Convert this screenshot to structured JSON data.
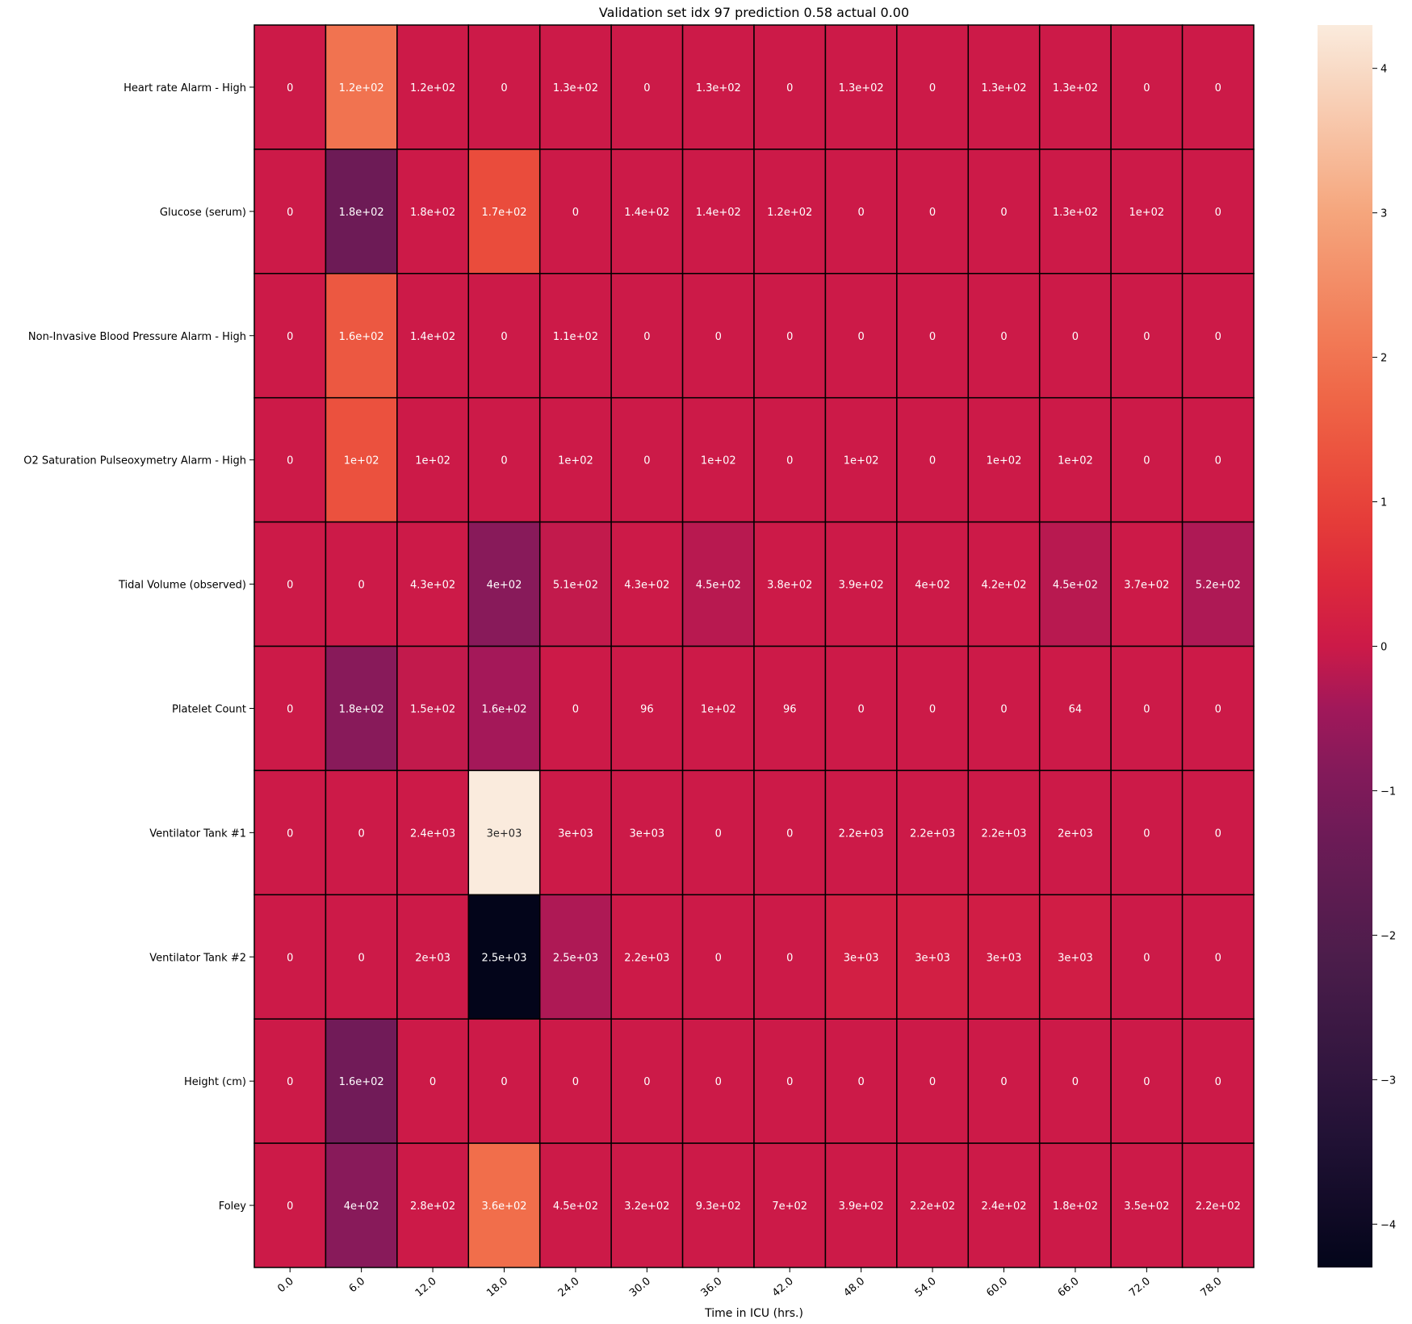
{
  "chart_data": {
    "type": "heatmap",
    "title": "Validation set idx 97 prediction 0.58 actual 0.00",
    "xlabel": "Time in ICU (hrs.)",
    "ylabel": "",
    "x": [
      "0.0",
      "6.0",
      "12.0",
      "18.0",
      "24.0",
      "30.0",
      "36.0",
      "42.0",
      "48.0",
      "54.0",
      "60.0",
      "66.0",
      "72.0",
      "78.0"
    ],
    "y": [
      "Heart rate Alarm - High",
      "Glucose (serum)",
      "Non-Invasive Blood Pressure Alarm - High",
      "O2 Saturation Pulseoxymetry Alarm - High",
      "Tidal Volume (observed)",
      "Platelet Count",
      "Ventilator Tank #1",
      "Ventilator Tank #2",
      "Height (cm)",
      "Foley"
    ],
    "annotations": [
      [
        "0",
        "1.2e+02",
        "1.2e+02",
        "0",
        "1.3e+02",
        "0",
        "1.3e+02",
        "0",
        "1.3e+02",
        "0",
        "1.3e+02",
        "1.3e+02",
        "0",
        "0"
      ],
      [
        "0",
        "1.8e+02",
        "1.8e+02",
        "1.7e+02",
        "0",
        "1.4e+02",
        "1.4e+02",
        "1.2e+02",
        "0",
        "0",
        "0",
        "1.3e+02",
        "1e+02",
        "0"
      ],
      [
        "0",
        "1.6e+02",
        "1.4e+02",
        "0",
        "1.1e+02",
        "0",
        "0",
        "0",
        "0",
        "0",
        "0",
        "0",
        "0",
        "0"
      ],
      [
        "0",
        "1e+02",
        "1e+02",
        "0",
        "1e+02",
        "0",
        "1e+02",
        "0",
        "1e+02",
        "0",
        "1e+02",
        "1e+02",
        "0",
        "0"
      ],
      [
        "0",
        "0",
        "4.3e+02",
        "4e+02",
        "5.1e+02",
        "4.3e+02",
        "4.5e+02",
        "3.8e+02",
        "3.9e+02",
        "4e+02",
        "4.2e+02",
        "4.5e+02",
        "3.7e+02",
        "5.2e+02"
      ],
      [
        "0",
        "1.8e+02",
        "1.5e+02",
        "1.6e+02",
        "0",
        "96",
        "1e+02",
        "96",
        "0",
        "0",
        "0",
        "64",
        "0",
        "0"
      ],
      [
        "0",
        "0",
        "2.4e+03",
        "3e+03",
        "3e+03",
        "3e+03",
        "0",
        "0",
        "2.2e+03",
        "2.2e+03",
        "2.2e+03",
        "2e+03",
        "0",
        "0"
      ],
      [
        "0",
        "0",
        "2e+03",
        "2.5e+03",
        "2.5e+03",
        "2.2e+03",
        "0",
        "0",
        "3e+03",
        "3e+03",
        "3e+03",
        "3e+03",
        "0",
        "0"
      ],
      [
        "0",
        "1.6e+02",
        "0",
        "0",
        "0",
        "0",
        "0",
        "0",
        "0",
        "0",
        "0",
        "0",
        "0",
        "0"
      ],
      [
        "0",
        "4e+02",
        "2.8e+02",
        "3.6e+02",
        "4.5e+02",
        "3.2e+02",
        "9.3e+02",
        "7e+02",
        "3.9e+02",
        "2.2e+02",
        "2.4e+02",
        "1.8e+02",
        "3.5e+02",
        "2.2e+02"
      ]
    ],
    "values": [
      [
        0,
        2.0,
        0,
        0,
        0,
        0,
        0,
        0,
        0,
        0,
        0,
        0,
        0,
        0
      ],
      [
        0,
        -1.3,
        0,
        1.2,
        0,
        0,
        0,
        0,
        0,
        0,
        0,
        0,
        0,
        0
      ],
      [
        0,
        1.45,
        0,
        0,
        0,
        0,
        0,
        0,
        0,
        0,
        0,
        0,
        0,
        0
      ],
      [
        0,
        1.3,
        0,
        0,
        0,
        0,
        0,
        0,
        0,
        0,
        0,
        0,
        0,
        0
      ],
      [
        0,
        0,
        0,
        -0.8,
        -0.1,
        0,
        -0.2,
        0,
        0,
        0,
        0,
        -0.2,
        0,
        -0.3
      ],
      [
        0,
        -0.8,
        -0.1,
        -0.4,
        0,
        0,
        0,
        0,
        0,
        0,
        0,
        0,
        0,
        0
      ],
      [
        0,
        0,
        0,
        4.3,
        0,
        0,
        0,
        0,
        0,
        0,
        0,
        0,
        0,
        0
      ],
      [
        0,
        0,
        0,
        -4.3,
        -0.3,
        0,
        0,
        0,
        0.15,
        0.15,
        0.1,
        0.1,
        0,
        0
      ],
      [
        0,
        -1.2,
        0,
        0,
        0,
        0,
        0,
        0,
        0,
        0,
        0,
        0,
        0,
        0
      ],
      [
        0,
        -0.8,
        0,
        1.9,
        0,
        0,
        0,
        0,
        0,
        0,
        0,
        0,
        0,
        0
      ]
    ],
    "colorbar": {
      "colormap": "rocket",
      "range": [
        -4.3,
        4.3
      ],
      "ticks": [
        "-4",
        "-3",
        "-2",
        "-1",
        "0",
        "1",
        "2",
        "3",
        "4"
      ],
      "tick_values": [
        -4,
        -3,
        -2,
        -1,
        0,
        1,
        2,
        3,
        4
      ]
    },
    "grid": true,
    "legend": "colorbar-right"
  }
}
